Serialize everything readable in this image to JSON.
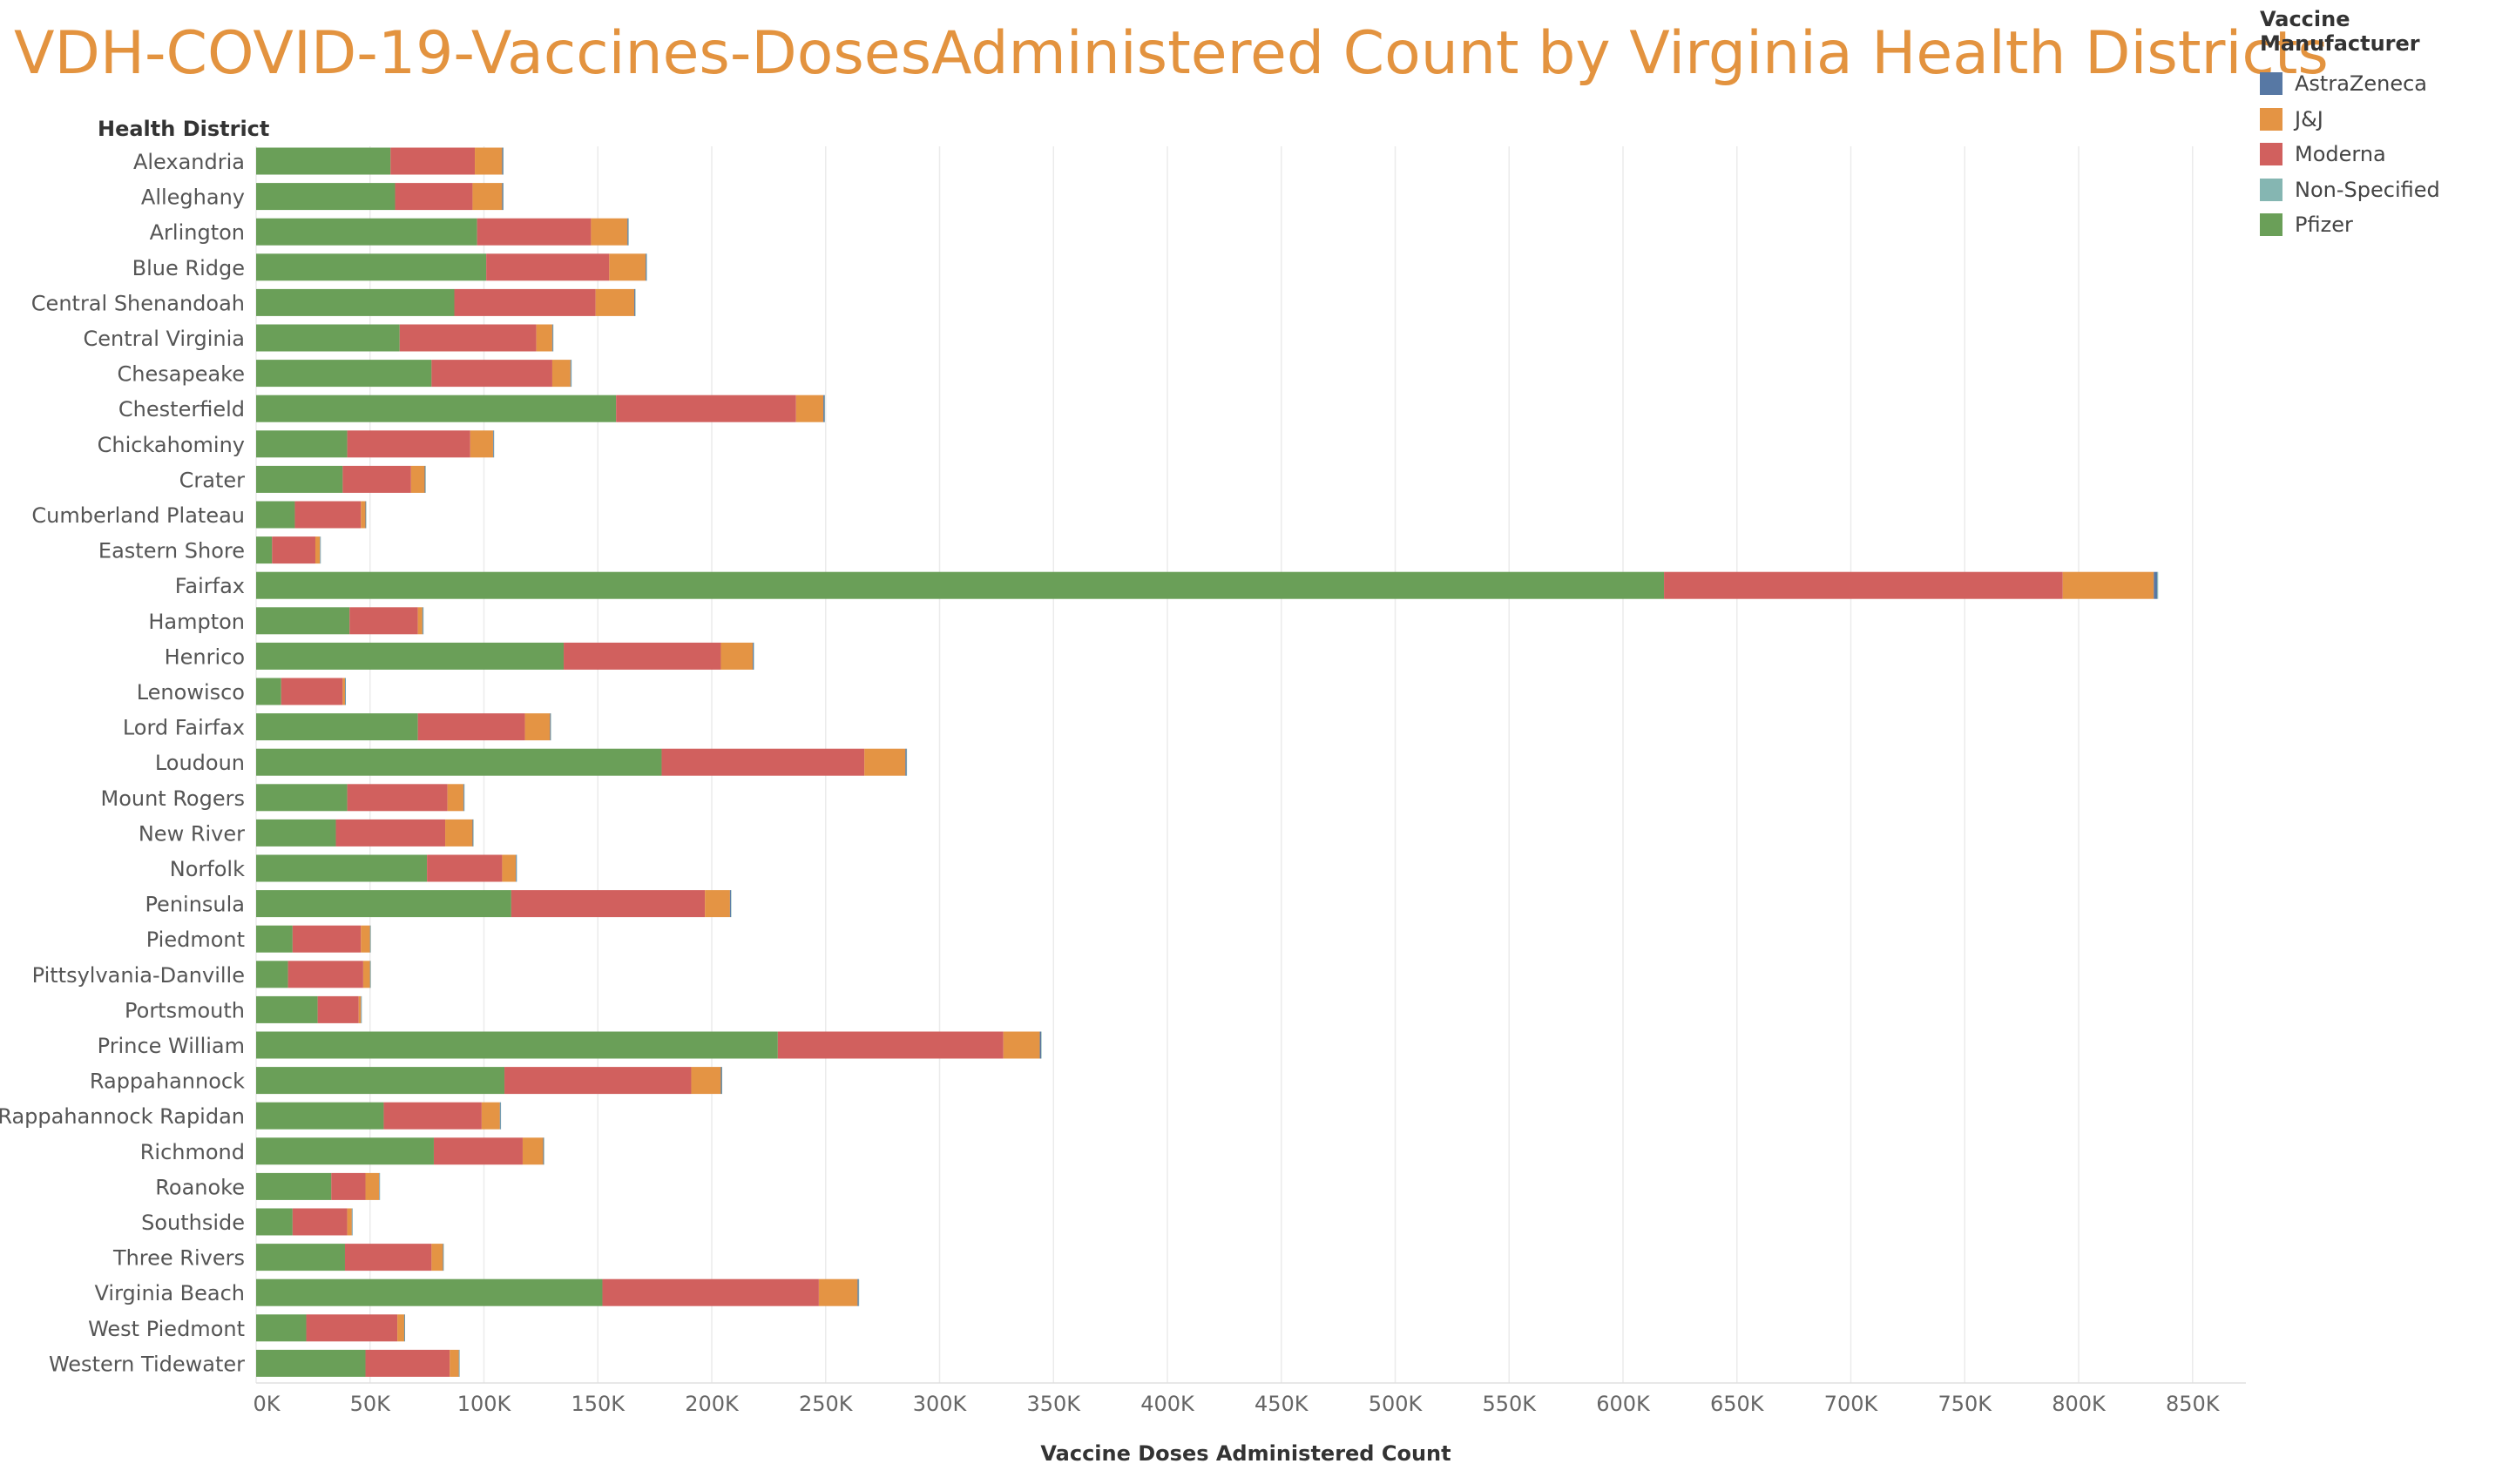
{
  "chart_data": {
    "type": "bar",
    "orientation": "horizontal",
    "stacked": true,
    "title": "VDH-COVID-19-Vaccines-DosesAdministered Count by Virginia Health Districts",
    "xlabel": "Vaccine Doses Administered Count",
    "ylabel": "Health District",
    "xlim": [
      0,
      880000
    ],
    "x_ticks": [
      "0K",
      "50K",
      "100K",
      "150K",
      "200K",
      "250K",
      "300K",
      "350K",
      "400K",
      "450K",
      "500K",
      "550K",
      "600K",
      "650K",
      "700K",
      "750K",
      "800K",
      "850K"
    ],
    "x_tick_values": [
      0,
      50000,
      100000,
      150000,
      200000,
      250000,
      300000,
      350000,
      400000,
      450000,
      500000,
      550000,
      600000,
      650000,
      700000,
      750000,
      800000,
      850000
    ],
    "grid": "vertical",
    "legend_title": "Vaccine Manufacturer",
    "legend_position": "top-right",
    "categories": [
      "Alexandria",
      "Alleghany",
      "Arlington",
      "Blue Ridge",
      "Central Shenandoah",
      "Central Virginia",
      "Chesapeake",
      "Chesterfield",
      "Chickahominy",
      "Crater",
      "Cumberland Plateau",
      "Eastern Shore",
      "Fairfax",
      "Hampton",
      "Henrico",
      "Lenowisco",
      "Lord Fairfax",
      "Loudoun",
      "Mount Rogers",
      "New River",
      "Norfolk",
      "Peninsula",
      "Piedmont",
      "Pittsylvania-Danville",
      "Portsmouth",
      "Prince William",
      "Rappahannock",
      "Rappahannock Rapidan",
      "Richmond",
      "Roanoke",
      "Southside",
      "Three Rivers",
      "Virginia Beach",
      "West Piedmont",
      "Western Tidewater"
    ],
    "series": [
      {
        "name": "Pfizer",
        "color": "#6A9F58",
        "values": [
          59000,
          61000,
          97000,
          101000,
          87000,
          63000,
          77000,
          158000,
          40000,
          38000,
          17000,
          7000,
          618000,
          41000,
          135000,
          11000,
          71000,
          178000,
          40000,
          35000,
          75000,
          112000,
          16000,
          14000,
          27000,
          229000,
          109000,
          56000,
          78000,
          33000,
          16000,
          39000,
          152000,
          22000,
          48000
        ]
      },
      {
        "name": "Moderna",
        "color": "#D1605E",
        "values": [
          37000,
          34000,
          50000,
          54000,
          62000,
          60000,
          53000,
          79000,
          54000,
          30000,
          29000,
          19000,
          175000,
          30000,
          69000,
          27000,
          47000,
          89000,
          44000,
          48000,
          33000,
          85000,
          30000,
          33000,
          18000,
          99000,
          82000,
          43000,
          39000,
          15000,
          24000,
          38000,
          95000,
          40000,
          37000
        ]
      },
      {
        "name": "J&J",
        "color": "#E49444",
        "values": [
          12000,
          13000,
          16000,
          16000,
          17000,
          7000,
          8000,
          12000,
          10000,
          6000,
          2000,
          2000,
          40000,
          2000,
          14000,
          1000,
          11000,
          18000,
          7000,
          12000,
          6000,
          11000,
          4000,
          3000,
          1000,
          16000,
          13000,
          8000,
          9000,
          6000,
          2000,
          5000,
          17000,
          3000,
          4000
        ]
      },
      {
        "name": "AstraZeneca",
        "color": "#5778A4",
        "values": [
          400,
          400,
          400,
          400,
          400,
          300,
          300,
          500,
          300,
          300,
          200,
          200,
          1500,
          300,
          400,
          200,
          300,
          500,
          300,
          300,
          300,
          400,
          200,
          200,
          200,
          600,
          400,
          300,
          300,
          200,
          200,
          200,
          500,
          200,
          200
        ]
      },
      {
        "name": "Non-Specified",
        "color": "#85B6B2",
        "values": [
          100,
          100,
          100,
          100,
          100,
          100,
          100,
          200,
          100,
          100,
          100,
          100,
          400,
          100,
          100,
          100,
          100,
          200,
          100,
          100,
          100,
          100,
          100,
          100,
          100,
          200,
          100,
          100,
          100,
          100,
          100,
          100,
          200,
          100,
          100
        ]
      }
    ],
    "legend_order": [
      "AstraZeneca",
      "J&J",
      "Moderna",
      "Non-Specified",
      "Pfizer"
    ]
  }
}
